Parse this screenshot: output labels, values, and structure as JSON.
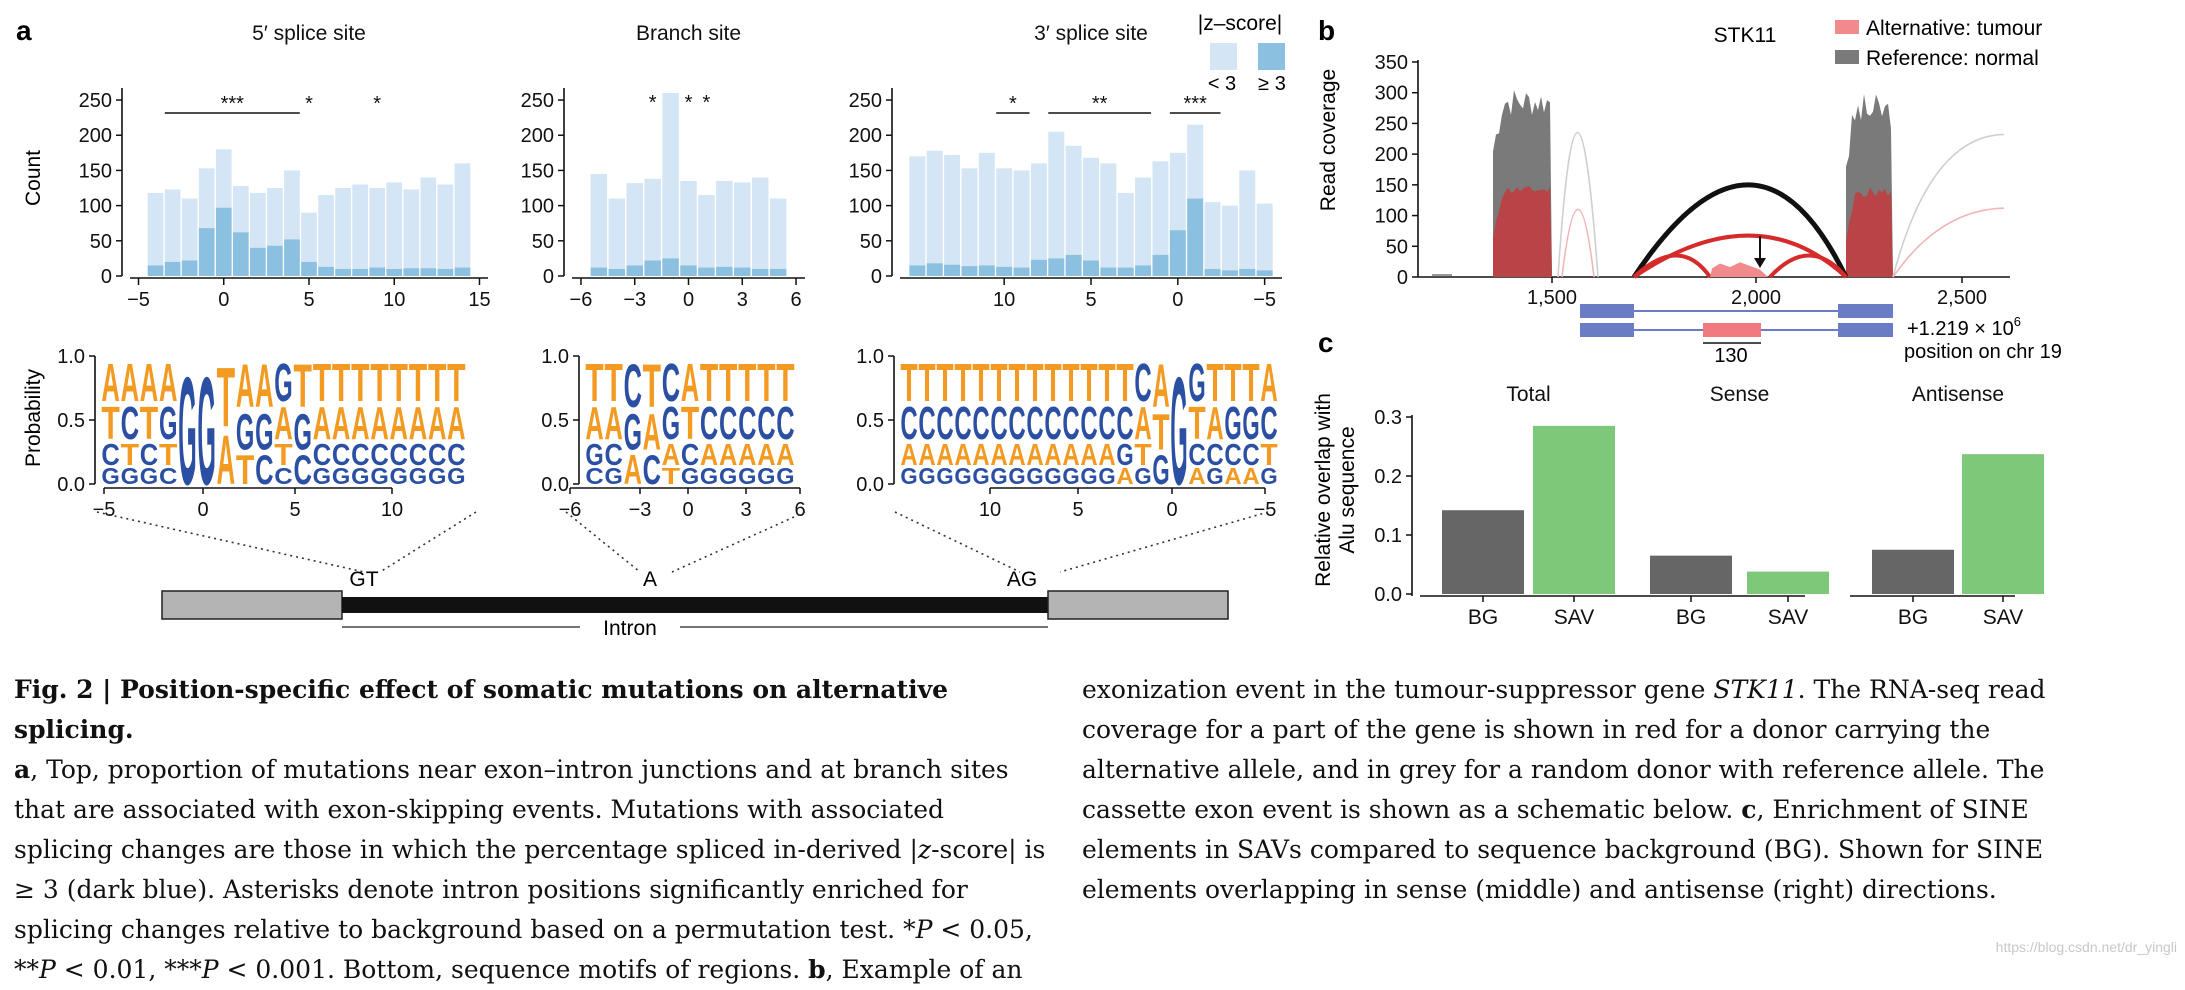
{
  "figure": {
    "number": "Fig. 2",
    "title": "Position-specific effect of somatic mutations on alternative splicing.",
    "panel_labels": [
      "a",
      "b",
      "c"
    ]
  },
  "colors": {
    "light_blue": "#d4e6f5",
    "dark_blue": "#8cc0e0",
    "orange": "#f39a22",
    "navy": "#2b4fa3",
    "tumour": "#b94447",
    "normal": "#7a7a7a",
    "tumour_legend": "#f08a8d",
    "bg_bar": "#666666",
    "sav_bar": "#7ec87a",
    "gene_box": "#6a7cc4",
    "alt_exon": "#f07a80",
    "exon_grey": "#b4b4b4"
  },
  "panel_a": {
    "legend_title": "|z–score|",
    "legend_items": [
      "< 3",
      "≥ 3"
    ],
    "count_ylabel": "Count",
    "prob_ylabel": "Probability",
    "intron_label": "Intron",
    "junction_labels": [
      "GT",
      "A",
      "AG"
    ],
    "logos": [
      {
        "region": "5prime",
        "xticks": [
          "−5",
          "0",
          "5",
          "10"
        ],
        "yticks": [
          "0.0",
          "0.5",
          "1.0"
        ]
      },
      {
        "region": "branch",
        "xticks": [
          "−6",
          "−3",
          "0",
          "3",
          "6"
        ],
        "yticks": [
          "0.0",
          "0.5",
          "1.0"
        ]
      },
      {
        "region": "3prime",
        "xticks": [
          "10",
          "5",
          "0",
          "−5"
        ],
        "yticks": [
          "0.0",
          "0.5",
          "1.0"
        ]
      }
    ]
  },
  "panel_b": {
    "gene": "STK11",
    "legend": [
      "Alternative: tumour",
      "Reference: normal"
    ],
    "ylabel": "Read coverage",
    "yticks": [
      "0",
      "50",
      "100",
      "150",
      "200",
      "250",
      "300",
      "350"
    ],
    "xticks": [
      "1,500",
      "2,000",
      "2,500"
    ],
    "position_line1": "+1.219 × 10",
    "position_exp": "6",
    "position_line2": "position on chr 19",
    "alt_exon_length": "130"
  },
  "panel_c": {
    "ylabel_line1": "Relative overlap with",
    "ylabel_line2": "Alu sequence"
  },
  "caption": {
    "left": [
      {
        "t": "Fig. 2 | Position-specific effect of somatic mutations on alternative splicing.",
        "s": "b"
      },
      {
        "t": "a",
        "s": "b",
        "br": true
      },
      {
        "t": ", Top, proportion of mutations near exon–intron junctions and at branch sites that are associated with exon-skipping events. Mutations with associated splicing changes are those in which the percentage spliced in-derived |"
      },
      {
        "t": "z",
        "s": "i"
      },
      {
        "t": "-score| is ≥ 3 (dark blue). Asterisks denote intron positions significantly enriched for splicing changes relative to background based on a permutation test. *"
      },
      {
        "t": "P",
        "s": "i"
      },
      {
        "t": " < 0.05, **"
      },
      {
        "t": "P",
        "s": "i"
      },
      {
        "t": " < 0.01, ***"
      },
      {
        "t": "P",
        "s": "i"
      },
      {
        "t": " < 0.001. Bottom, sequence motifs of regions. "
      },
      {
        "t": "b",
        "s": "b"
      },
      {
        "t": ", Example of an"
      }
    ],
    "right": [
      {
        "t": "exonization event in the tumour-suppressor gene "
      },
      {
        "t": "STK11",
        "s": "i"
      },
      {
        "t": ". The RNA-seq read coverage for a part of the gene is shown in red for a donor carrying the alternative allele, and in grey for a random donor with reference allele. The cassette exon event is shown as a schematic below. "
      },
      {
        "t": "c",
        "s": "b"
      },
      {
        "t": ", Enrichment of SINE elements in SAVs compared to sequence background (BG). Shown for SINE elements overlapping in sense (middle) and antisense (right) directions."
      }
    ]
  },
  "watermark": "https://blog.csdn.net/dr_yingli",
  "chart_data": [
    {
      "id": "a_5prime",
      "type": "bar",
      "title": "5′ splice site",
      "xlabel": "",
      "ylabel": "Count",
      "ylim": [
        0,
        260
      ],
      "xlim": [
        -5.5,
        15.5
      ],
      "xticks": [
        -5,
        0,
        5,
        10,
        15
      ],
      "yticks": [
        0,
        50,
        100,
        150,
        200,
        250
      ],
      "x": [
        -4,
        -3,
        -2,
        -1,
        0,
        1,
        2,
        3,
        4,
        5,
        6,
        7,
        8,
        9,
        10,
        11,
        12,
        13,
        14
      ],
      "series": [
        {
          "name": "< 3",
          "values": [
            118,
            123,
            110,
            153,
            180,
            128,
            118,
            125,
            150,
            90,
            115,
            125,
            130,
            125,
            133,
            123,
            140,
            130,
            160
          ]
        },
        {
          "name": "≥ 3",
          "values": [
            15,
            20,
            22,
            68,
            97,
            62,
            40,
            43,
            52,
            20,
            13,
            10,
            10,
            12,
            10,
            11,
            11,
            10,
            12
          ]
        }
      ],
      "significance": [
        {
          "label": "***",
          "from": -3,
          "to": 4
        },
        {
          "label": "*",
          "from": 5,
          "to": 5
        },
        {
          "label": "*",
          "from": 9,
          "to": 9
        }
      ]
    },
    {
      "id": "a_branch",
      "type": "bar",
      "title": "Branch site",
      "xlabel": "",
      "ylabel": "",
      "ylim": [
        0,
        260
      ],
      "xlim": [
        -6.5,
        6.5
      ],
      "xticks": [
        -6,
        -3,
        0,
        3,
        6
      ],
      "yticks": [
        0,
        50,
        100,
        150,
        200,
        250
      ],
      "x": [
        -5,
        -4,
        -3,
        -2,
        -1,
        0,
        1,
        2,
        3,
        4,
        5
      ],
      "series": [
        {
          "name": "< 3",
          "values": [
            145,
            110,
            132,
            138,
            260,
            135,
            115,
            135,
            133,
            140,
            110
          ]
        },
        {
          "name": "≥ 3",
          "values": [
            12,
            10,
            15,
            22,
            25,
            15,
            12,
            13,
            12,
            10,
            10
          ]
        }
      ],
      "significance": [
        {
          "label": "*",
          "from": -2,
          "to": -2
        },
        {
          "label": "*",
          "from": 0,
          "to": 0
        },
        {
          "label": "*",
          "from": 1,
          "to": 1
        }
      ]
    },
    {
      "id": "a_3prime",
      "type": "bar",
      "title": "3′ splice site",
      "xlabel": "",
      "ylabel": "",
      "ylim": [
        0,
        260
      ],
      "xlim": [
        -6,
        16
      ],
      "reversed_x": true,
      "xticks": [
        10,
        5,
        0,
        -5
      ],
      "yticks": [
        0,
        50,
        100,
        150,
        200,
        250
      ],
      "x": [
        15,
        14,
        13,
        12,
        11,
        10,
        9,
        8,
        7,
        6,
        5,
        4,
        3,
        2,
        1,
        0,
        -1,
        -2,
        -3,
        -4,
        -5
      ],
      "series": [
        {
          "name": "< 3",
          "values": [
            170,
            178,
            172,
            153,
            175,
            153,
            150,
            160,
            205,
            185,
            168,
            160,
            118,
            140,
            163,
            175,
            215,
            105,
            100,
            150,
            103
          ]
        },
        {
          "name": "≥ 3",
          "values": [
            15,
            18,
            16,
            14,
            15,
            13,
            12,
            23,
            25,
            30,
            22,
            12,
            12,
            15,
            30,
            65,
            110,
            10,
            8,
            10,
            8
          ]
        }
      ],
      "significance": [
        {
          "label": "*",
          "from": 10,
          "to": 9
        },
        {
          "label": "**",
          "from": 7,
          "to": 2
        },
        {
          "label": "***",
          "from": 0,
          "to": -2
        }
      ]
    },
    {
      "id": "c_total",
      "type": "bar",
      "title": "Total",
      "ylabel": "Relative overlap with Alu sequence",
      "ylim": [
        0,
        0.3
      ],
      "yticks": [
        0.0,
        0.1,
        0.2,
        0.3
      ],
      "categories": [
        "BG",
        "SAV"
      ],
      "values": [
        0.142,
        0.285
      ]
    },
    {
      "id": "c_sense",
      "type": "bar",
      "title": "Sense",
      "ylim": [
        0,
        0.3
      ],
      "categories": [
        "BG",
        "SAV"
      ],
      "values": [
        0.065,
        0.038
      ]
    },
    {
      "id": "c_antisense",
      "type": "bar",
      "title": "Antisense",
      "ylim": [
        0,
        0.3
      ],
      "categories": [
        "BG",
        "SAV"
      ],
      "values": [
        0.075,
        0.237
      ]
    }
  ]
}
